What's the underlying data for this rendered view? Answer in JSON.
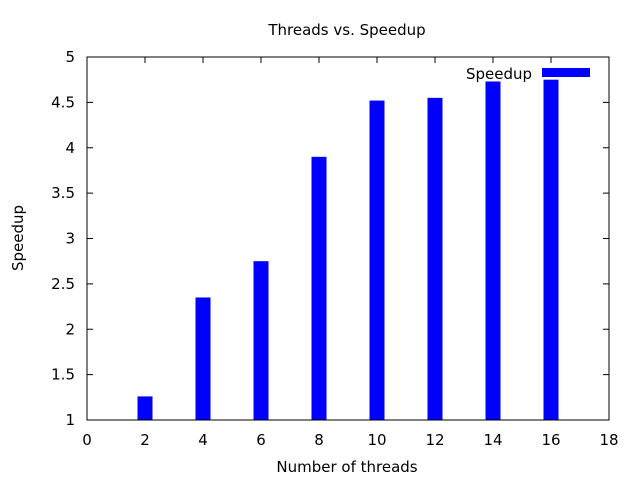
{
  "chart_data": {
    "type": "bar",
    "title": "Threads vs. Speedup",
    "xlabel": "Number of threads",
    "ylabel": "Speedup",
    "xlim": [
      0,
      18
    ],
    "ylim": [
      1,
      5
    ],
    "xticks": [
      0,
      2,
      4,
      6,
      8,
      10,
      12,
      14,
      16,
      18
    ],
    "yticks": [
      1,
      1.5,
      2,
      2.5,
      3,
      3.5,
      4,
      4.5,
      5
    ],
    "xtick_labels": [
      "0",
      "2",
      "4",
      "6",
      "8",
      "10",
      "12",
      "14",
      "16",
      "18"
    ],
    "ytick_labels": [
      "1",
      "1.5",
      "2",
      "2.5",
      "3",
      "3.5",
      "4",
      "4.5",
      "5"
    ],
    "grid": false,
    "legend_position": "top-right",
    "series": [
      {
        "name": "Speedup",
        "color": "#0000ff",
        "x": [
          2,
          4,
          6,
          8,
          10,
          12,
          14,
          16
        ],
        "values": [
          1.26,
          2.35,
          2.75,
          3.9,
          4.52,
          4.55,
          4.73,
          4.75
        ]
      }
    ]
  }
}
